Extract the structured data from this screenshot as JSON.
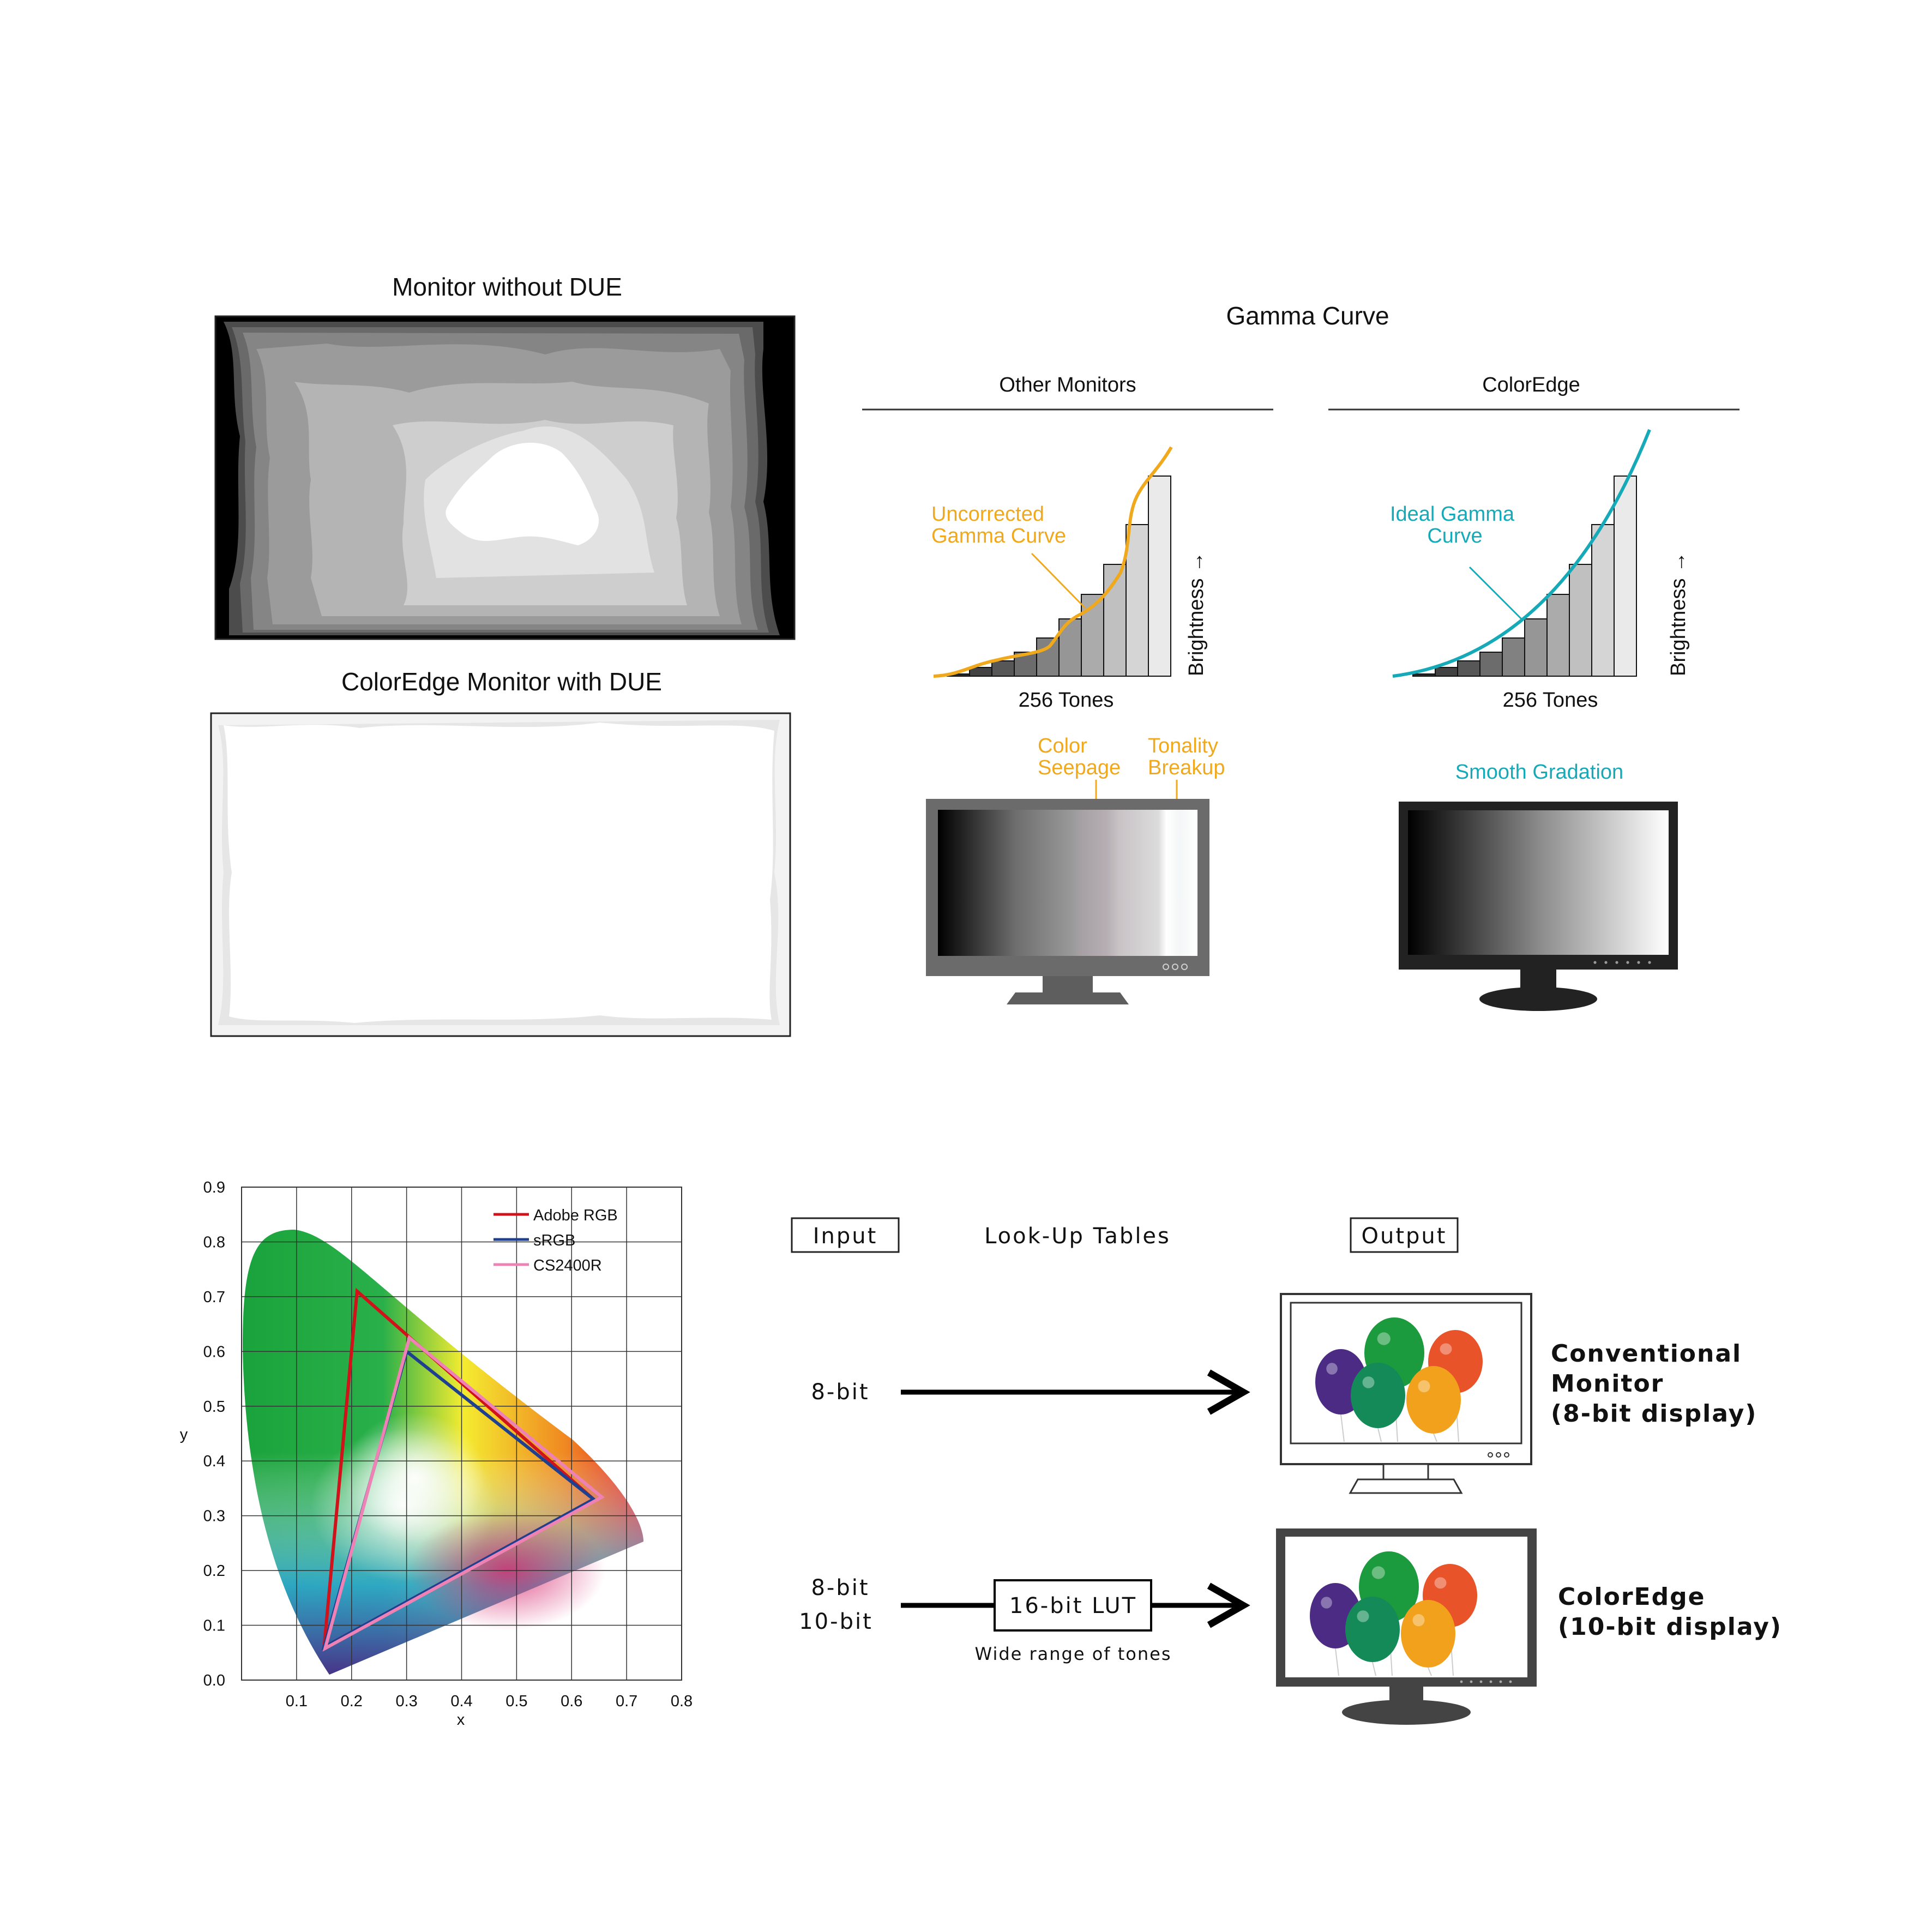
{
  "due_section": {
    "without_title": "Monitor without DUE",
    "with_title": "ColorEdge Monitor with DUE"
  },
  "gamma_section": {
    "title": "Gamma Curve",
    "left": {
      "heading": "Other Monitors",
      "curve_label_line1": "Uncorrected",
      "curve_label_line2": "Gamma Curve",
      "x_label": "256 Tones",
      "y_label": "Brightness →",
      "issue1_line1": "Color",
      "issue1_line2": "Seepage",
      "issue2_line1": "Tonality",
      "issue2_line2": "Breakup"
    },
    "right": {
      "heading": "ColorEdge",
      "curve_label_line1": "Ideal Gamma",
      "curve_label_line2": "Curve",
      "x_label": "256 Tones",
      "y_label": "Brightness →",
      "result_label": "Smooth Gradation"
    },
    "colors": {
      "uncorrected": "#f0a81c",
      "ideal": "#16aab8"
    }
  },
  "gamut_chart": {
    "chart_data": {
      "type": "line",
      "title": "",
      "xlabel": "x",
      "ylabel": "y",
      "xlim": [
        0,
        0.8
      ],
      "ylim": [
        0,
        0.9
      ],
      "xticks": [
        "0.1",
        "0.2",
        "0.3",
        "0.4",
        "0.5",
        "0.6",
        "0.7",
        "0.8"
      ],
      "yticks": [
        "0.0",
        "0.1",
        "0.2",
        "0.3",
        "0.4",
        "0.5",
        "0.6",
        "0.7",
        "0.8",
        "0.9"
      ],
      "grid": true,
      "legend_position": "top-right",
      "series": [
        {
          "name": "Adobe RGB",
          "color": "#d0121b",
          "points": [
            [
              0.64,
              0.33
            ],
            [
              0.21,
              0.71
            ],
            [
              0.15,
              0.06
            ]
          ]
        },
        {
          "name": "sRGB",
          "color": "#1f3f8f",
          "points": [
            [
              0.64,
              0.33
            ],
            [
              0.3,
              0.6
            ],
            [
              0.15,
              0.06
            ]
          ]
        },
        {
          "name": "CS2400R",
          "color": "#ee82b4",
          "points": [
            [
              0.655,
              0.334
            ],
            [
              0.305,
              0.625
            ],
            [
              0.152,
              0.058
            ]
          ]
        }
      ]
    }
  },
  "lut_section": {
    "input_label": "Input",
    "lut_label": "Look-Up Tables",
    "output_label": "Output",
    "row1_input": "8-bit",
    "row1_output_line1": "Conventional",
    "row1_output_line2": "Monitor",
    "row1_output_line3": "(8-bit display)",
    "row2_input_line1": "8-bit",
    "row2_input_line2": "10-bit",
    "lut_box_label": "16-bit LUT",
    "lut_caption": "Wide range of tones",
    "row2_output_line1": "ColorEdge",
    "row2_output_line2": "(10-bit display)"
  }
}
